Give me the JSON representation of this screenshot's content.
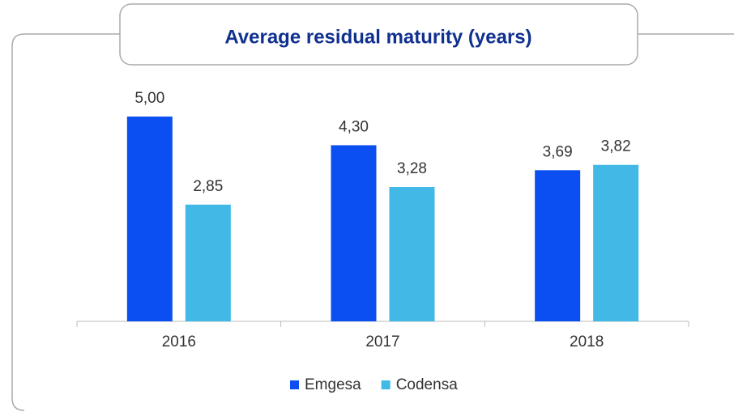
{
  "chart_data": {
    "type": "bar",
    "title": "Average residual maturity (years)",
    "categories": [
      "2016",
      "2017",
      "2018"
    ],
    "series": [
      {
        "name": "Emgesa",
        "color": "#0b4ff2",
        "values": [
          5.0,
          4.3,
          3.69
        ],
        "value_labels": [
          "5,00",
          "4,30",
          "3,69"
        ]
      },
      {
        "name": "Codensa",
        "color": "#41b8e6",
        "values": [
          2.85,
          3.28,
          3.82
        ],
        "value_labels": [
          "2,85",
          "3,28",
          "3,82"
        ]
      }
    ]
  }
}
